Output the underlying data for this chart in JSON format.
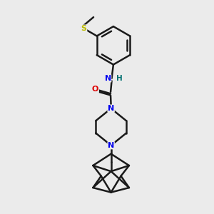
{
  "bg_color": "#ebebeb",
  "bond_color": "#1a1a1a",
  "N_color": "#0000ee",
  "O_color": "#dd0000",
  "S_color": "#bbbb00",
  "H_color": "#007070",
  "line_width": 1.8,
  "fig_size": [
    3.0,
    3.0
  ],
  "dpi": 100,
  "xlim": [
    0,
    10
  ],
  "ylim": [
    0,
    10
  ]
}
